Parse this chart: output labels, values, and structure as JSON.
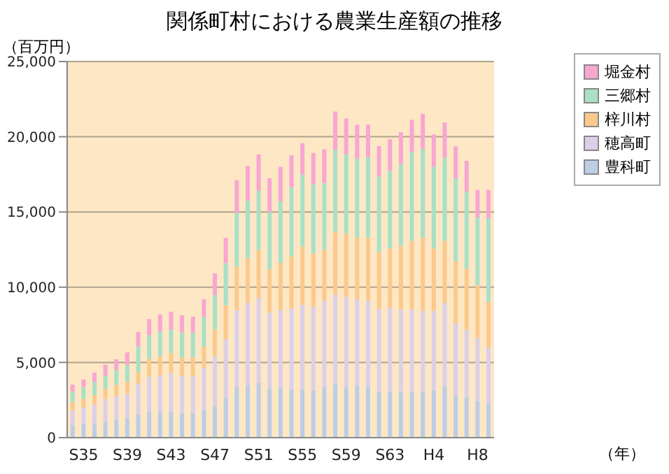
{
  "chart_data": {
    "type": "bar",
    "title": "関係町村における農業生産額の推移",
    "ylabel": "（百万円）",
    "annotations": [
      "（年）"
    ],
    "stacked": true,
    "categories": [
      null,
      "S35",
      null,
      null,
      null,
      "S39",
      null,
      null,
      null,
      "S43",
      null,
      null,
      null,
      "S47",
      null,
      null,
      null,
      "S51",
      null,
      null,
      null,
      "S55",
      null,
      null,
      null,
      "S59",
      null,
      null,
      null,
      "S63",
      null,
      null,
      null,
      "H4",
      null,
      null,
      null,
      "H8",
      null
    ],
    "series": [
      {
        "name": "豊科町",
        "color": "#bccde6",
        "values": [
          830,
          920,
          920,
          1070,
          1200,
          1290,
          1530,
          1720,
          1720,
          1720,
          1630,
          1630,
          1810,
          2120,
          2640,
          3370,
          3500,
          3650,
          3280,
          3310,
          3220,
          3220,
          3130,
          3370,
          3560,
          3370,
          3470,
          3370,
          3040,
          3100,
          3040,
          3040,
          3040,
          3130,
          3400,
          2820,
          2670,
          2450,
          2270
        ]
      },
      {
        "name": "穂高町",
        "color": "#dccfe8",
        "values": [
          980,
          1070,
          1290,
          1510,
          1560,
          1620,
          2030,
          2330,
          2420,
          2570,
          2450,
          2450,
          2820,
          3310,
          3920,
          5100,
          5460,
          5640,
          5030,
          5190,
          5370,
          5610,
          5580,
          5740,
          5950,
          5980,
          5730,
          5740,
          5490,
          5550,
          5490,
          5490,
          5390,
          5300,
          5560,
          4790,
          4510,
          4170,
          3710
        ]
      },
      {
        "name": "梓川村",
        "color": "#fcc98c",
        "values": [
          550,
          590,
          610,
          640,
          740,
          800,
          800,
          1190,
          1260,
          1320,
          1230,
          1260,
          1410,
          1750,
          2240,
          2880,
          2970,
          3190,
          2880,
          3120,
          3460,
          3870,
          3530,
          3370,
          4170,
          4210,
          4110,
          4200,
          3800,
          3920,
          4230,
          4560,
          4850,
          4140,
          4130,
          4110,
          4050,
          3500,
          3040
        ]
      },
      {
        "name": "三郷村",
        "color": "#a9e0c6",
        "values": [
          710,
          790,
          890,
          890,
          1010,
          1110,
          1710,
          1570,
          1650,
          1570,
          1680,
          1650,
          1960,
          2300,
          2790,
          3590,
          3830,
          3930,
          3810,
          4080,
          4600,
          4780,
          4600,
          4450,
          5460,
          5300,
          5250,
          5340,
          5030,
          5160,
          5430,
          5890,
          5920,
          5440,
          5530,
          5520,
          5120,
          4510,
          5550
        ]
      },
      {
        "name": "堀金村",
        "color": "#f8a6d2",
        "values": [
          460,
          490,
          610,
          740,
          700,
          850,
          950,
          1070,
          1140,
          1190,
          1140,
          1050,
          1200,
          1440,
          1690,
          2170,
          2300,
          2420,
          2240,
          2300,
          2120,
          2090,
          2080,
          2240,
          2540,
          2360,
          2240,
          2150,
          2020,
          2110,
          2110,
          2150,
          2330,
          2140,
          2330,
          2120,
          2050,
          1840,
          1900
        ]
      }
    ],
    "ylim": [
      0,
      25000
    ],
    "yticks": [
      0,
      {
        "value": 5000,
        "label": "5,000"
      },
      {
        "value": 10000,
        "label": "10,000"
      },
      {
        "value": 15000,
        "label": "15,000"
      },
      {
        "value": 20000,
        "label": "20,000"
      },
      {
        "value": 25000,
        "label": "25,000"
      }
    ],
    "grid": "y",
    "legend": "top right"
  }
}
